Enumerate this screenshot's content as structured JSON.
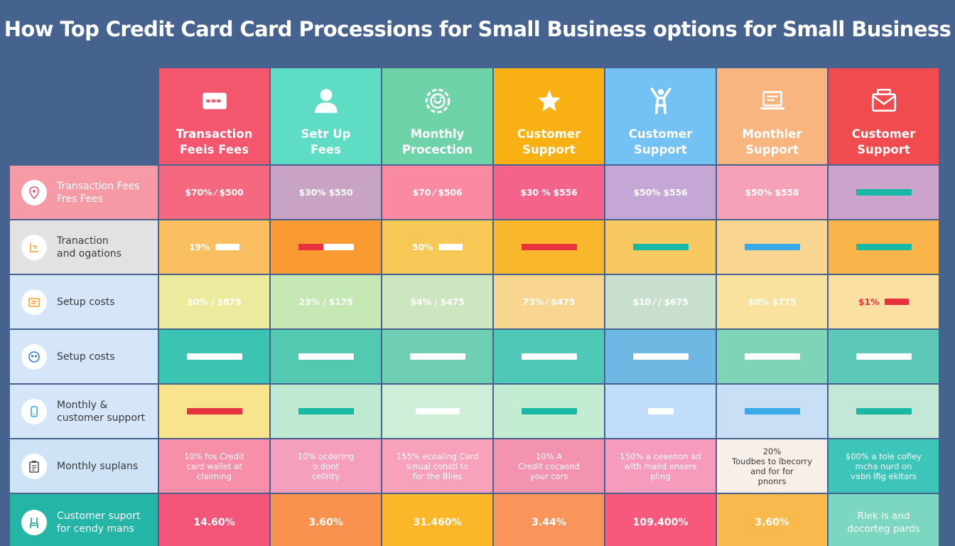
{
  "title": "How Top Credit Card Card Processions for Small Business options for Small Business",
  "colors": {
    "background": "#46638f",
    "bar_white": "#ffffff",
    "bar_red": "#e8323e",
    "bar_teal": "#19b8a4",
    "bar_blue": "#3aa9e8"
  },
  "chart_data": {
    "type": "table",
    "columns": [
      {
        "label": "Transaction\nFeeis Fees",
        "icon": "credit-card-icon",
        "color": "#f4566e"
      },
      {
        "label": "Setr Up\nFees",
        "icon": "person-icon",
        "color": "#5fdcc4"
      },
      {
        "label": "Monthly\nProcection",
        "icon": "gear-icon",
        "color": "#6fd3a9"
      },
      {
        "label": "Customer\nSupport",
        "icon": "star-icon",
        "color": "#f8b012"
      },
      {
        "label": "Customer\nSupport",
        "icon": "person-arms-up-icon",
        "color": "#74c1f4"
      },
      {
        "label": "Monthler\nSupport",
        "icon": "laptop-icon",
        "color": "#f9b57f"
      },
      {
        "label": "Customer\nSupport",
        "icon": "envelope-icon",
        "color": "#f04c50"
      }
    ],
    "rows": [
      {
        "label": "Transaction Fees\nFres Fees",
        "icon": "location-pin-icon",
        "label_bg": "#f69aa5",
        "label_color": "#ffffff",
        "cells": [
          {
            "bg": "#f4697f",
            "text": "$70% ⁄ $500"
          },
          {
            "bg": "#c9a3c4",
            "text": "$30% $550"
          },
          {
            "bg": "#f98aa2",
            "text": "$70 ⁄ $506"
          },
          {
            "bg": "#f4648a",
            "text": "$30 % $556"
          },
          {
            "bg": "#c5a7d6",
            "text": "$50% $556"
          },
          {
            "bg": "#f6a1b8",
            "text": "$50% $558"
          },
          {
            "bg": "#cba3cd",
            "bar": "teal",
            "bar_len": 0.75
          }
        ]
      },
      {
        "label": "Tranaction\nand ogations",
        "icon": "chart-icon",
        "label_bg": "#e2e2e2",
        "label_color": "#3a3a3a",
        "cells": [
          {
            "bg": "#f8be60",
            "text": "19%",
            "bar": "white",
            "bar_len": 0.4
          },
          {
            "bg": "#f99a33",
            "bar": "red-white",
            "bar_len": 0.75
          },
          {
            "bg": "#f8c857",
            "text": "50%",
            "bar": "white",
            "bar_len": 0.4
          },
          {
            "bg": "#f9b72d",
            "bar": "red",
            "bar_len": 0.75
          },
          {
            "bg": "#f8c862",
            "bar": "teal",
            "bar_len": 0.75
          },
          {
            "bg": "#f8d692",
            "bar": "blue",
            "bar_len": 0.75
          },
          {
            "bg": "#f9b549",
            "bar": "teal",
            "bar_len": 0.75
          }
        ]
      },
      {
        "label": "Setup costs",
        "icon": "document-icon",
        "label_bg": "#d4e6f7",
        "label_color": "#3a3a3a",
        "cells": [
          {
            "bg": "#ecea9c",
            "text": "$0% / $875"
          },
          {
            "bg": "#c6e8b4",
            "text": "23% / $175"
          },
          {
            "bg": "#cce6bf",
            "text": "$4% / $475"
          },
          {
            "bg": "#f8d68f",
            "text": "73% ⁄ $475"
          },
          {
            "bg": "#c9dfcd",
            "text": "$10 ⁄ / $675"
          },
          {
            "bg": "#f8e29e",
            "text": "$0% $775"
          },
          {
            "bg": "#fbe0a3",
            "text": "$1%",
            "bar": "red",
            "bar_len": 0.4,
            "text_color": "#e8323e"
          }
        ]
      },
      {
        "label": "Setup costs",
        "icon": "users-icon",
        "label_bg": "#d4e6f7",
        "label_color": "#3a3a3a",
        "cells": [
          {
            "bg": "#3cc4b2",
            "bar": "white",
            "bar_len": 0.75
          },
          {
            "bg": "#52c9b0",
            "bar": "white",
            "bar_len": 0.75
          },
          {
            "bg": "#6fcfb4",
            "bar": "white",
            "bar_len": 0.75
          },
          {
            "bg": "#4ec9b8",
            "bar": "white",
            "bar_len": 0.75
          },
          {
            "bg": "#6fb8e4",
            "bar": "white",
            "bar_len": 0.75
          },
          {
            "bg": "#7ed4b7",
            "bar": "white",
            "bar_len": 0.75
          },
          {
            "bg": "#5cc9b8",
            "bar": "white",
            "bar_len": 0.75
          }
        ]
      },
      {
        "label": "Monthly &\ncustomer support",
        "icon": "phone-icon",
        "label_bg": "#d4e6f7",
        "label_color": "#3a3a3a",
        "cells": [
          {
            "bg": "#f9e48e",
            "bar": "red",
            "bar_len": 0.75
          },
          {
            "bg": "#bfe9d1",
            "bar": "teal",
            "bar_len": 0.75
          },
          {
            "bg": "#cdeed7",
            "bar": "white",
            "bar_len": 0.6
          },
          {
            "bg": "#c3ecd2",
            "bar": "teal",
            "bar_len": 0.75
          },
          {
            "bg": "#c1ddf7",
            "bar": "white",
            "bar_len": 0.35
          },
          {
            "bg": "#c8dff5",
            "bar": "blue",
            "bar_len": 0.75
          },
          {
            "bg": "#c4e7d8",
            "bar": "teal",
            "bar_len": 0.75
          }
        ]
      },
      {
        "label": "Monthly suplans",
        "icon": "clipboard-icon",
        "label_bg": "#cfe3f6",
        "label_color": "#3a3a3a",
        "cells": [
          {
            "bg": "#f78fa8",
            "text": "10% fos Credit\ncard wallet at\nclaiming",
            "style": "small"
          },
          {
            "bg": "#f69fbd",
            "text": "10% ocdering\no dont\ncellrity",
            "style": "small"
          },
          {
            "bg": "#f7a2ba",
            "text": "155% ecoaling Card\nsinual constl to\nfor the Blies",
            "style": "small"
          },
          {
            "bg": "#f493af",
            "text": "10% A\nCredit cocaend\nyour cors",
            "style": "small"
          },
          {
            "bg": "#f79bbd",
            "text": "150% a ceaenon ad\nwith maild ensere\npling",
            "style": "small"
          },
          {
            "bg": "#f9efe9",
            "text": "20%\nToudbes to lbecorry\nand for for\npnonrs",
            "style": "small",
            "text_color": "#3a3a3a"
          },
          {
            "bg": "#3cc5b8",
            "text": "$00% a toie cofiey\nmcha nurd on\nvabn lfig ekitars",
            "style": "small"
          }
        ]
      },
      {
        "label": "Customer suport\nfor cendy mans",
        "icon": "chair-icon",
        "label_bg": "#25b5a6",
        "label_color": "#ffffff",
        "cells": [
          {
            "bg": "#f4567a",
            "text": "14.60%",
            "style": "big"
          },
          {
            "bg": "#f9914f",
            "text": "3.60%",
            "style": "big"
          },
          {
            "bg": "#fbb629",
            "text": "31.460%",
            "style": "big"
          },
          {
            "bg": "#f9945a",
            "text": "3.44%",
            "style": "big"
          },
          {
            "bg": "#f6597c",
            "text": "109.400%",
            "style": "big"
          },
          {
            "bg": "#f9ba4d",
            "text": "3.60%",
            "style": "big"
          },
          {
            "bg": "#7cd7c0",
            "text": "Rlek is and\ndocorteg pards",
            "style": "bigtext"
          }
        ]
      }
    ]
  }
}
